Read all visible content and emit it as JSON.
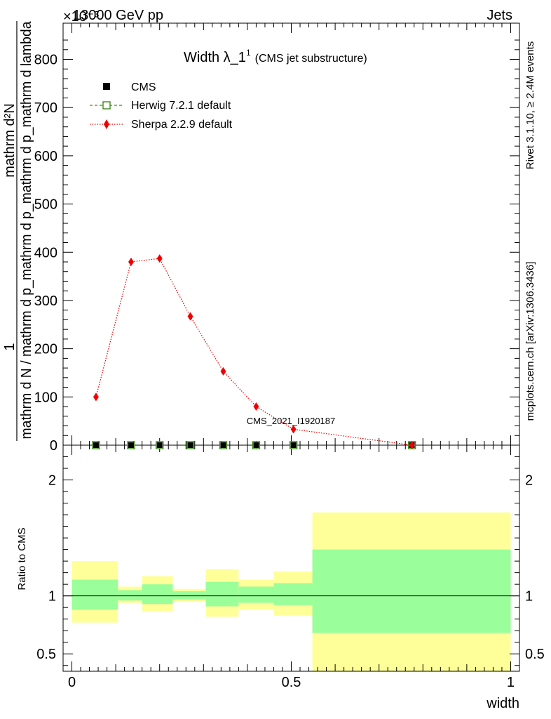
{
  "header": {
    "left": "13000 GeV pp",
    "right": "Jets",
    "exponent_label": "×10⁻³"
  },
  "side_labels": {
    "rivet": "Rivet 3.1.10, ≥ 2.4M events",
    "mcplots": "mcplots.cern.ch [arXiv:1306.3436]"
  },
  "chart_data": [
    {
      "type": "line",
      "title_main": "Width λ_1",
      "title_sup": "1",
      "title_sub": "(CMS jet substructure)",
      "ylabel_numerator": "1",
      "ylabel_denominator": "mathrm d N / mathrm d p_mathrm d p_mathrm d p_mathrm d lambda",
      "ylabel_right": "mathrm d²N",
      "ylim": [
        0,
        875
      ],
      "xlim": [
        -0.02,
        1.02
      ],
      "yticks": [
        0,
        100,
        200,
        300,
        400,
        500,
        600,
        700,
        800
      ],
      "watermark": "CMS_2021_I1920187",
      "legend": {
        "placement": "top-left",
        "entries": [
          {
            "label": "CMS",
            "marker": "square-filled",
            "color": "#000000"
          },
          {
            "label": "Herwig 7.2.1 default",
            "marker": "square-open-dashed",
            "color": "#3a8a1a"
          },
          {
            "label": "Sherpa 2.2.9 default",
            "marker": "diamond-dotted",
            "color": "#ee0000"
          }
        ]
      },
      "series": [
        {
          "name": "CMS",
          "x": [
            0.055,
            0.135,
            0.2,
            0.27,
            0.345,
            0.42,
            0.505,
            0.775
          ],
          "values": [
            0,
            0,
            0,
            0,
            0,
            0,
            0,
            0
          ]
        },
        {
          "name": "Herwig 7.2.1 default",
          "x": [
            0.055,
            0.135,
            0.2,
            0.27,
            0.345,
            0.42,
            0.505,
            0.775
          ],
          "values": [
            0,
            0,
            0,
            0,
            0,
            0,
            0,
            0
          ]
        },
        {
          "name": "Sherpa 2.2.9 default",
          "x": [
            0.055,
            0.135,
            0.2,
            0.27,
            0.345,
            0.42,
            0.505,
            0.775
          ],
          "values": [
            100,
            380,
            387,
            267,
            153,
            80,
            33,
            0
          ]
        }
      ]
    },
    {
      "type": "area",
      "ylabel": "Ratio to CMS",
      "xlabel": "width",
      "ylim": [
        0.35,
        2.3
      ],
      "xlim": [
        -0.02,
        1.02
      ],
      "xticks": [
        0,
        0.5,
        1
      ],
      "xtick_labels": [
        "0",
        "0.5",
        "1"
      ],
      "yticks": [
        0.5,
        1,
        2
      ],
      "ytick_labels": [
        "0.5",
        "1",
        "2"
      ],
      "reference_line": 1,
      "bins": [
        {
          "x0": 0.0,
          "x1": 0.105,
          "stat_lo": 0.88,
          "stat_hi": 1.14,
          "tot_lo": 0.77,
          "tot_hi": 1.3
        },
        {
          "x0": 0.105,
          "x1": 0.16,
          "stat_lo": 0.96,
          "stat_hi": 1.05,
          "tot_lo": 0.94,
          "tot_hi": 1.08
        },
        {
          "x0": 0.16,
          "x1": 0.23,
          "stat_lo": 0.93,
          "stat_hi": 1.1,
          "tot_lo": 0.87,
          "tot_hi": 1.17
        },
        {
          "x0": 0.23,
          "x1": 0.305,
          "stat_lo": 0.97,
          "stat_hi": 1.04,
          "tot_lo": 0.95,
          "tot_hi": 1.06
        },
        {
          "x0": 0.305,
          "x1": 0.38,
          "stat_lo": 0.91,
          "stat_hi": 1.12,
          "tot_lo": 0.82,
          "tot_hi": 1.23
        },
        {
          "x0": 0.38,
          "x1": 0.46,
          "stat_lo": 0.94,
          "stat_hi": 1.08,
          "tot_lo": 0.88,
          "tot_hi": 1.14
        },
        {
          "x0": 0.46,
          "x1": 0.548,
          "stat_lo": 0.92,
          "stat_hi": 1.11,
          "tot_lo": 0.83,
          "tot_hi": 1.21
        },
        {
          "x0": 0.548,
          "x1": 1.0,
          "stat_lo": 0.68,
          "stat_hi": 1.4,
          "tot_lo": 0.35,
          "tot_hi": 1.72
        }
      ]
    }
  ],
  "colors": {
    "stat_band": "#9aff9a",
    "total_band": "#ffff99",
    "sherpa": "#ee0000",
    "herwig": "#3a8a1a",
    "cms": "#000000",
    "side_text": "#888888",
    "watermark": "#999999"
  }
}
